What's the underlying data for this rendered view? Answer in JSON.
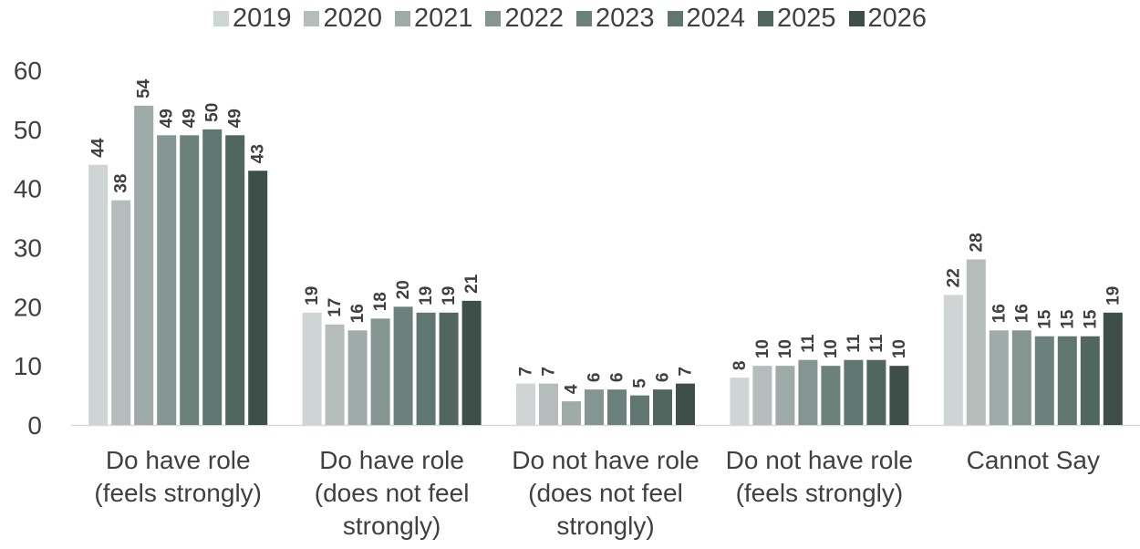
{
  "chart_data": {
    "type": "bar",
    "categories": [
      [
        "Do have role",
        "(feels strongly)"
      ],
      [
        "Do have role",
        "(does not  feel",
        "strongly)"
      ],
      [
        "Do not have role",
        "(does not feel",
        "strongly)"
      ],
      [
        "Do not have role",
        "(feels strongly)"
      ],
      [
        "Cannot Say"
      ]
    ],
    "series": [
      {
        "name": "2019",
        "color": "#cfd5d4",
        "values": [
          44,
          19,
          7,
          8,
          22
        ],
        "labels": [
          "44",
          "19",
          "7",
          "8",
          "22"
        ]
      },
      {
        "name": "2020",
        "color": "#b4bdbb",
        "values": [
          38,
          17,
          7,
          10,
          28
        ],
        "labels": [
          "38",
          "17",
          "7",
          "10",
          "28"
        ]
      },
      {
        "name": "2021",
        "color": "#9eaba8",
        "values": [
          54,
          16,
          4,
          10,
          16
        ],
        "labels": [
          "54",
          "16",
          "4",
          "10",
          "16"
        ]
      },
      {
        "name": "2022",
        "color": "#859591",
        "values": [
          49,
          18,
          6,
          11,
          16
        ],
        "labels": [
          "49",
          "18",
          "6",
          "11",
          "16"
        ]
      },
      {
        "name": "2023",
        "color": "#6d817c",
        "values": [
          49,
          20,
          6,
          10,
          15
        ],
        "labels": [
          "49",
          "20",
          "6",
          "10",
          "15"
        ]
      },
      {
        "name": "2024",
        "color": "#5f7671",
        "values": [
          50,
          19,
          5,
          11,
          15
        ],
        "labels": [
          "50",
          "19",
          "5",
          "11",
          "15"
        ]
      },
      {
        "name": "2025",
        "color": "#51665f",
        "values": [
          49,
          19,
          6,
          11,
          15
        ],
        "labels": [
          "49",
          "19",
          "6",
          "11",
          "15"
        ]
      },
      {
        "name": "2026",
        "color": "#3e4f49",
        "values": [
          43,
          21,
          7,
          10,
          19
        ],
        "labels": [
          "43",
          "21",
          "7",
          "10",
          "19"
        ]
      }
    ],
    "yticks": [
      "0",
      "10",
      "20",
      "30",
      "40",
      "50",
      "60"
    ],
    "ylim": [
      0,
      60
    ],
    "legend_position": "top",
    "grid": false
  }
}
